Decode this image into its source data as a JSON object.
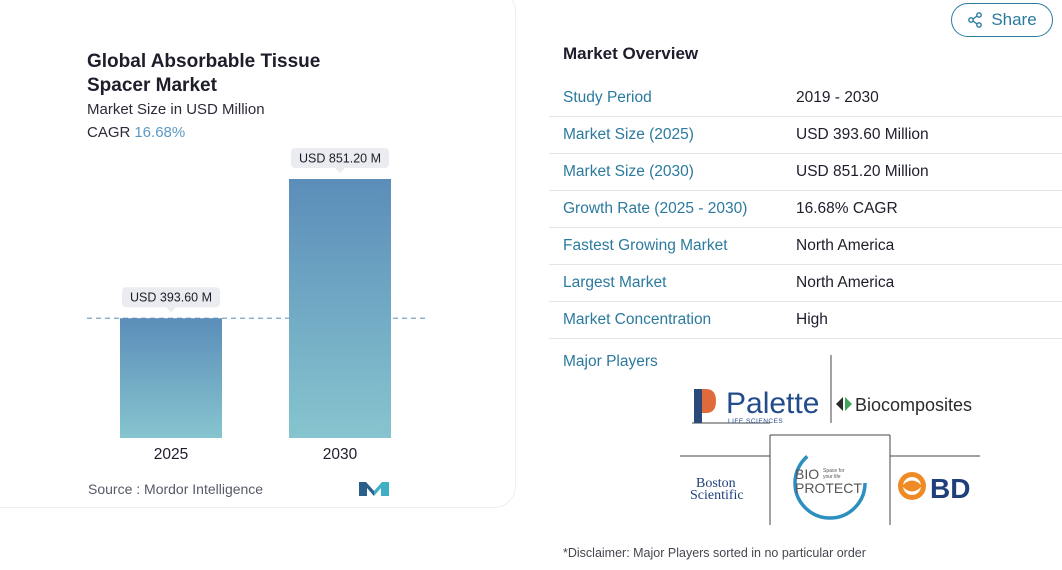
{
  "chart": {
    "title": "Global Absorbable Tissue Spacer Market",
    "subtitle": "Market Size in USD Million",
    "cagr_label": "CAGR",
    "cagr_value": "16.68%",
    "source": "Source :  Mordor Intelligence"
  },
  "chart_data": {
    "type": "bar",
    "categories": [
      "2025",
      "2030"
    ],
    "values": [
      393.6,
      851.2
    ],
    "data_labels": [
      "USD 393.60 M",
      "USD 851.20 M"
    ],
    "title": "Global Absorbable Tissue Spacer Market",
    "ylabel": "Market Size in USD Million",
    "ylim": [
      0,
      851.2
    ],
    "grid": false,
    "reference_line": "dashed line at 2025 value",
    "colors": {
      "bar_top": "#5b8db9",
      "bar_bottom": "#86c5cf",
      "dash": "#7aa4c4"
    }
  },
  "share": {
    "label": "Share",
    "icon": "share-icon",
    "color": "#2b7a9e"
  },
  "overview": {
    "title": "Market Overview",
    "rows": [
      {
        "label": "Study Period",
        "value": "2019 - 2030"
      },
      {
        "label": "Market Size (2025)",
        "value": "USD 393.60 Million"
      },
      {
        "label": "Market Size (2030)",
        "value": "USD 851.20 Million"
      },
      {
        "label": "Growth Rate (2025 - 2030)",
        "value": "16.68% CAGR"
      },
      {
        "label": "Fastest Growing Market",
        "value": "North America"
      },
      {
        "label": "Largest Market",
        "value": "North America"
      },
      {
        "label": "Market Concentration",
        "value": "High"
      }
    ]
  },
  "players": {
    "title": "Major Players",
    "logos": [
      "Palette Life Sciences",
      "Biocomposites",
      "Boston Scientific",
      "BioProtect",
      "BD"
    ]
  },
  "disclaimer": "*Disclaimer: Major Players sorted in no particular order"
}
